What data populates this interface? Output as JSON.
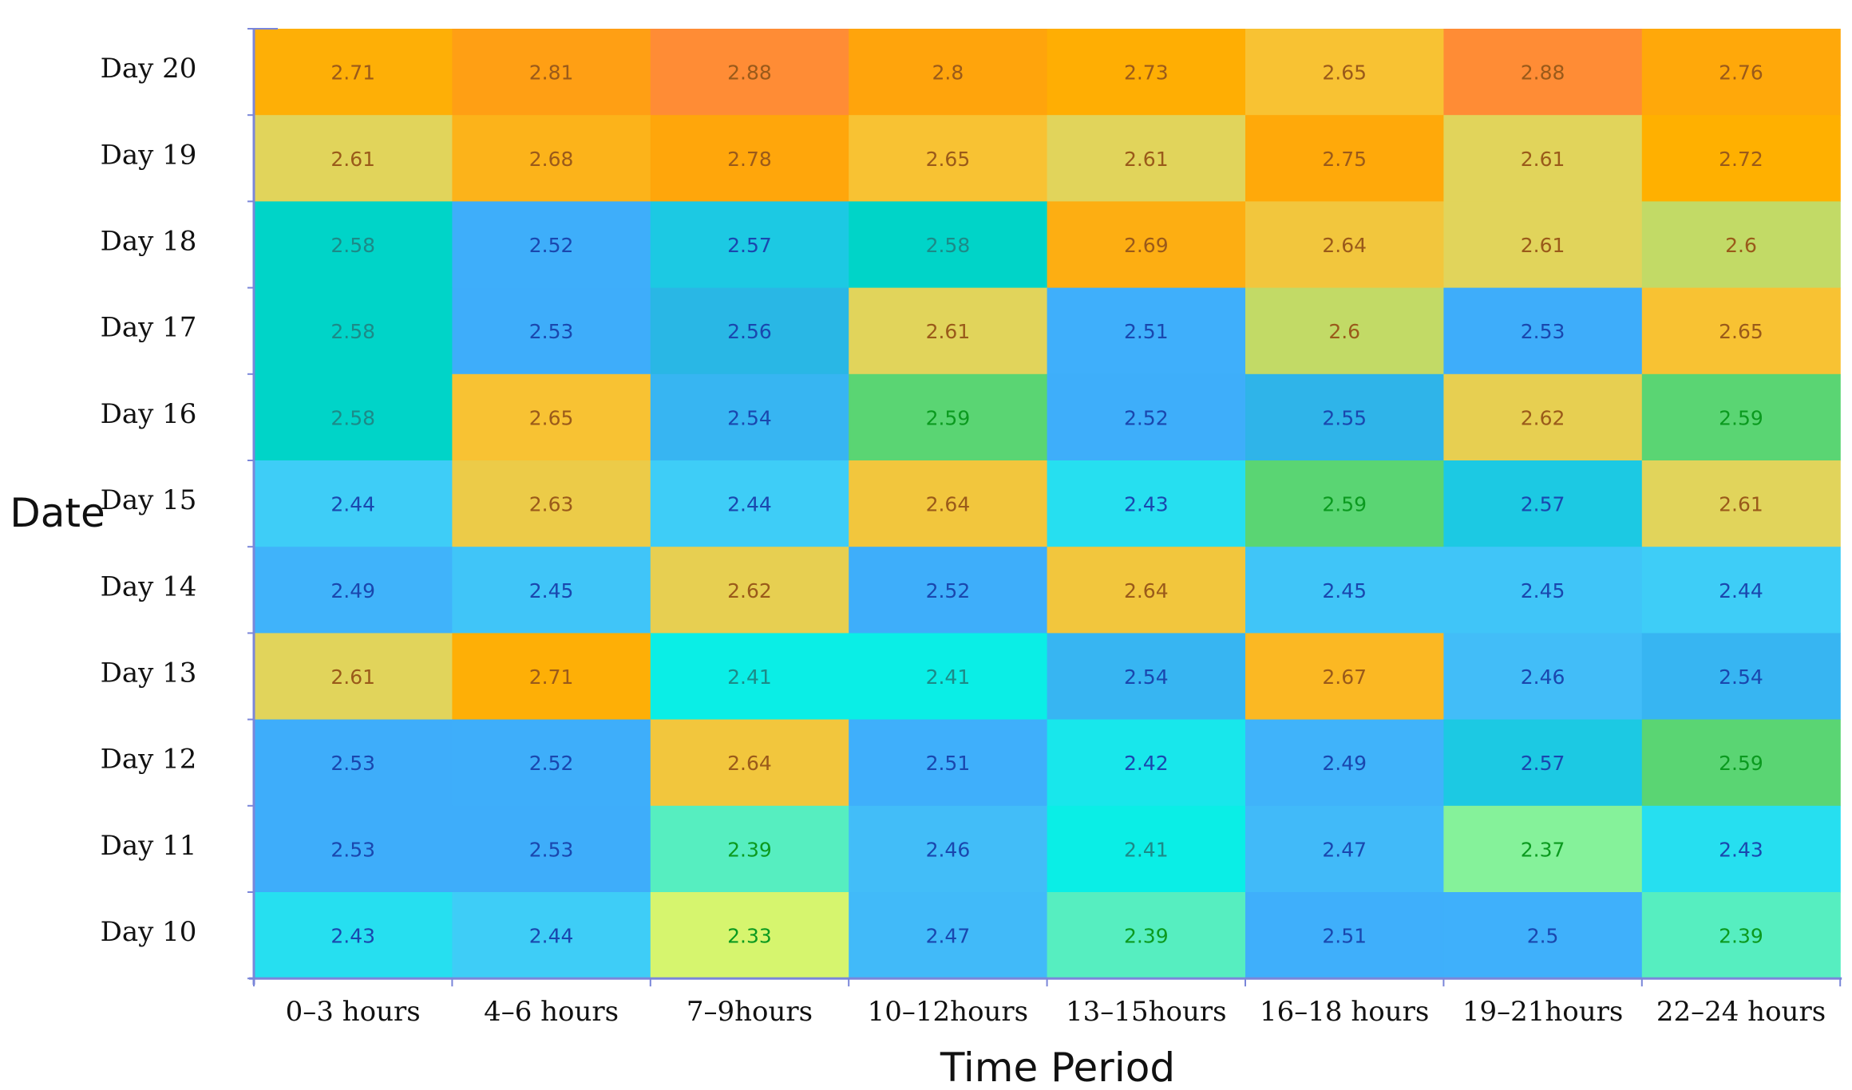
{
  "chart_data": {
    "type": "heatmap",
    "title": "",
    "xlabel": "Time Period",
    "ylabel": "Date",
    "columns": [
      "0–3 hours",
      "4–6 hours",
      "7–9hours",
      "10–12hours",
      "13–15hours",
      "16–18 hours",
      "19–21hours",
      "22–24 hours"
    ],
    "rows": [
      "Day 20",
      "Day 19",
      "Day 18",
      "Day 17",
      "Day 16",
      "Day 15",
      "Day 14",
      "Day 13",
      "Day 12",
      "Day 11",
      "Day 10"
    ],
    "values": [
      [
        "2.71",
        "2.81",
        "2.88",
        "2.8",
        "2.73",
        "2.65",
        "2.88",
        "2.76"
      ],
      [
        "2.61",
        "2.68",
        "2.78",
        "2.65",
        "2.61",
        "2.75",
        "2.61",
        "2.72"
      ],
      [
        "2.58",
        "2.52",
        "2.57",
        "2.58",
        "2.69",
        "2.64",
        "2.61",
        "2.6"
      ],
      [
        "2.58",
        "2.53",
        "2.56",
        "2.61",
        "2.51",
        "2.6",
        "2.53",
        "2.65"
      ],
      [
        "2.58",
        "2.65",
        "2.54",
        "2.59",
        "2.52",
        "2.55",
        "2.62",
        "2.59"
      ],
      [
        "2.44",
        "2.63",
        "2.44",
        "2.64",
        "2.43",
        "2.59",
        "2.57",
        "2.61"
      ],
      [
        "2.49",
        "2.45",
        "2.62",
        "2.52",
        "2.64",
        "2.45",
        "2.45",
        "2.44"
      ],
      [
        "2.61",
        "2.71",
        "2.41",
        "2.41",
        "2.54",
        "2.67",
        "2.46",
        "2.54"
      ],
      [
        "2.53",
        "2.52",
        "2.64",
        "2.51",
        "2.42",
        "2.49",
        "2.57",
        "2.59"
      ],
      [
        "2.53",
        "2.53",
        "2.39",
        "2.46",
        "2.41",
        "2.47",
        "2.37",
        "2.43"
      ],
      [
        "2.43",
        "2.44",
        "2.33",
        "2.47",
        "2.39",
        "2.51",
        "2.5",
        "2.39"
      ]
    ],
    "color_scale": {
      "min": 2.33,
      "max": 2.88,
      "stops": [
        {
          "value": 2.33,
          "color": "#d6f56e"
        },
        {
          "value": 2.37,
          "color": "#85f29a"
        },
        {
          "value": 2.39,
          "color": "#56eec0"
        },
        {
          "value": 2.41,
          "color": "#0aeee6"
        },
        {
          "value": 2.43,
          "color": "#26dff0"
        },
        {
          "value": 2.44,
          "color": "#3ecdf7"
        },
        {
          "value": 2.46,
          "color": "#42bdf8"
        },
        {
          "value": 2.5,
          "color": "#3fb0fb"
        },
        {
          "value": 2.53,
          "color": "#3eadfa"
        },
        {
          "value": 2.54,
          "color": "#37b5f2"
        },
        {
          "value": 2.55,
          "color": "#2fb4e9"
        },
        {
          "value": 2.56,
          "color": "#29b7e5"
        },
        {
          "value": 2.57,
          "color": "#1cc9e3"
        },
        {
          "value": 2.58,
          "color": "#00d4c8"
        },
        {
          "value": 2.59,
          "color": "#5ad573"
        },
        {
          "value": 2.6,
          "color": "#c2da66"
        },
        {
          "value": 2.61,
          "color": "#e1d45b"
        },
        {
          "value": 2.63,
          "color": "#eccb48"
        },
        {
          "value": 2.65,
          "color": "#f8c233"
        },
        {
          "value": 2.69,
          "color": "#fdae12"
        },
        {
          "value": 2.72,
          "color": "#ffb000"
        },
        {
          "value": 2.75,
          "color": "#ffa90a"
        },
        {
          "value": 2.8,
          "color": "#ffa40c"
        },
        {
          "value": 2.81,
          "color": "#ff9f14"
        },
        {
          "value": 2.88,
          "color": "#ff8c35"
        }
      ],
      "text_colors": {
        "warm": "#9a5a1a",
        "blue": "#1a47ae",
        "green": "#0b9a1f",
        "teal": "#1c8a88"
      }
    },
    "grid": false,
    "legend": "none"
  }
}
